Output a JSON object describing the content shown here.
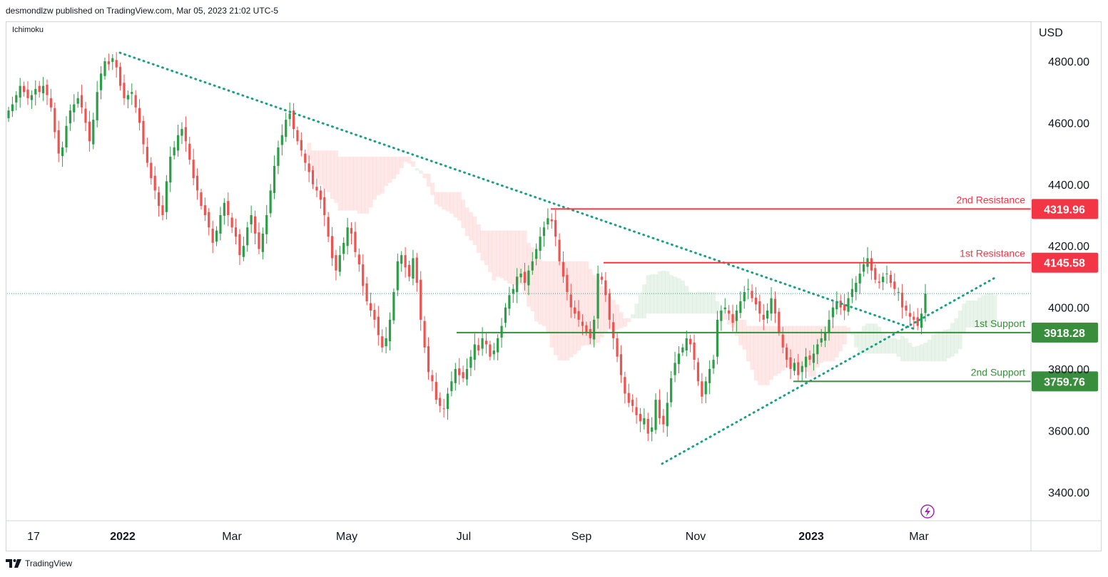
{
  "header": {
    "byline": "desmondlzw published on TradingView.com, Mar 05, 2023 21:02 UTC-5"
  },
  "indicator": "Ichimoku",
  "footer": {
    "brand": "TradingView"
  },
  "colors": {
    "up": "#26a69a",
    "upCandle": "#2e9d48",
    "down": "#ef5350",
    "resistance": "#f23645",
    "support": "#388e3c",
    "trend": "#16a085"
  },
  "chart_data": {
    "type": "candlestick",
    "currency": "USD",
    "y_ticks": [
      "4800.00",
      "4600.00",
      "4400.00",
      "4200.00",
      "4000.00",
      "3800.00",
      "3600.00",
      "3400.00"
    ],
    "x_ticks": [
      "17",
      "2022",
      "Mar",
      "May",
      "Jul",
      "Sep",
      "Nov",
      "2023",
      "Mar"
    ],
    "levels": [
      {
        "name": "2nd Resistance",
        "value": 4319.96,
        "value_label": "4319.96",
        "type": "resistance"
      },
      {
        "name": "1st Resistance",
        "value": 4145.58,
        "value_label": "4145.58",
        "type": "resistance"
      },
      {
        "name": "1st Support",
        "value": 3918.28,
        "value_label": "3918.28",
        "type": "support"
      },
      {
        "name": "2nd Support",
        "value": 3759.76,
        "value_label": "3759.76",
        "type": "support"
      }
    ],
    "trendlines": [
      {
        "name": "downtrend",
        "from": [
          "Jan 2022",
          4820
        ],
        "to": [
          "Mar 2023",
          3940
        ]
      },
      {
        "name": "uptrend",
        "from": [
          "Oct 2022",
          3490
        ],
        "to": [
          "Apr 2023",
          4095
        ]
      }
    ],
    "last_price": 4045,
    "closes": [
      4640,
      4660,
      4690,
      4720,
      4700,
      4680,
      4690,
      4710,
      4700,
      4720,
      4690,
      4650,
      4570,
      4500,
      4520,
      4590,
      4640,
      4660,
      4680,
      4650,
      4600,
      4540,
      4610,
      4700,
      4760,
      4800,
      4790,
      4810,
      4780,
      4720,
      4680,
      4690,
      4700,
      4650,
      4600,
      4530,
      4470,
      4420,
      4380,
      4330,
      4300,
      4410,
      4490,
      4520,
      4560,
      4580,
      4540,
      4480,
      4420,
      4380,
      4330,
      4300,
      4260,
      4210,
      4250,
      4300,
      4340,
      4300,
      4260,
      4230,
      4170,
      4200,
      4260,
      4300,
      4240,
      4190,
      4240,
      4300,
      4380,
      4460,
      4520,
      4560,
      4610,
      4630,
      4580,
      4540,
      4510,
      4470,
      4440,
      4400,
      4380,
      4350,
      4300,
      4230,
      4160,
      4120,
      4170,
      4210,
      4260,
      4240,
      4180,
      4140,
      4070,
      4020,
      3990,
      3960,
      3910,
      3870,
      3900,
      3960,
      4050,
      4150,
      4170,
      4130,
      4100,
      4160,
      4080,
      3960,
      3870,
      3790,
      3760,
      3700,
      3680,
      3670,
      3720,
      3760,
      3800,
      3780,
      3770,
      3800,
      3840,
      3880,
      3860,
      3900,
      3880,
      3840,
      3860,
      3900,
      3940,
      4000,
      4040,
      4060,
      4100,
      4110,
      4080,
      4120,
      4150,
      4190,
      4230,
      4260,
      4290,
      4280,
      4230,
      4150,
      4100,
      4050,
      4000,
      3980,
      3960,
      3940,
      3920,
      3900,
      3960,
      4110,
      4090,
      4040,
      3960,
      3900,
      3840,
      3780,
      3720,
      3690,
      3680,
      3650,
      3630,
      3640,
      3590,
      3610,
      3700,
      3640,
      3620,
      3690,
      3770,
      3820,
      3850,
      3870,
      3900,
      3880,
      3830,
      3760,
      3710,
      3760,
      3800,
      3830,
      3960,
      3990,
      4000,
      3980,
      3950,
      3990,
      4020,
      4050,
      4060,
      4030,
      4010,
      3980,
      3960,
      3990,
      4030,
      3980,
      3920,
      3870,
      3830,
      3800,
      3820,
      3780,
      3810,
      3840,
      3830,
      3850,
      3880,
      3900,
      3920,
      3960,
      4000,
      4020,
      4000,
      3990,
      4030,
      4060,
      4080,
      4110,
      4140,
      4160,
      4120,
      4090,
      4080,
      4100,
      4110,
      4080,
      4060,
      4050,
      4000,
      3990,
      3970,
      3960,
      3940,
      3980,
      4045
    ]
  }
}
